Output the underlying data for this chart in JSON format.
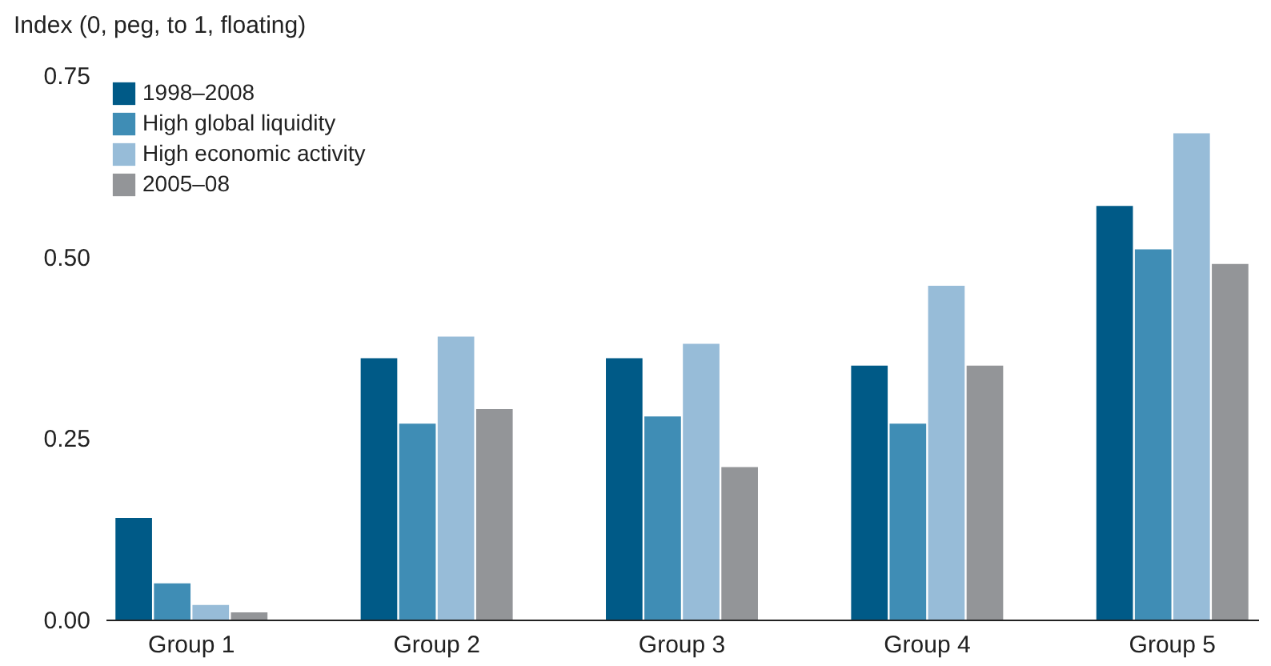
{
  "chart_data": {
    "type": "bar",
    "ylabel": "Index (0, peg, to 1, floating)",
    "categories": [
      "Group 1",
      "Group 2",
      "Group 3",
      "Group 4",
      "Group 5"
    ],
    "series": [
      {
        "name": "1998–2008",
        "color": "#005a87",
        "values": [
          0.14,
          0.36,
          0.36,
          0.35,
          0.57
        ]
      },
      {
        "name": "High global liquidity",
        "color": "#3f8db5",
        "values": [
          0.05,
          0.27,
          0.28,
          0.27,
          0.51
        ]
      },
      {
        "name": "High economic activity",
        "color": "#97bcd8",
        "values": [
          0.02,
          0.39,
          0.38,
          0.46,
          0.67
        ]
      },
      {
        "name": "2005–08",
        "color": "#939598",
        "values": [
          0.01,
          0.29,
          0.21,
          0.35,
          0.49
        ]
      }
    ],
    "ylim": [
      0,
      0.75
    ],
    "yticks": [
      {
        "value": 0,
        "label": "0.00"
      },
      {
        "value": 0.25,
        "label": "0.25"
      },
      {
        "value": 0.5,
        "label": "0.50"
      },
      {
        "value": 0.75,
        "label": "0.75"
      }
    ],
    "grid": false,
    "legend": "top left"
  }
}
